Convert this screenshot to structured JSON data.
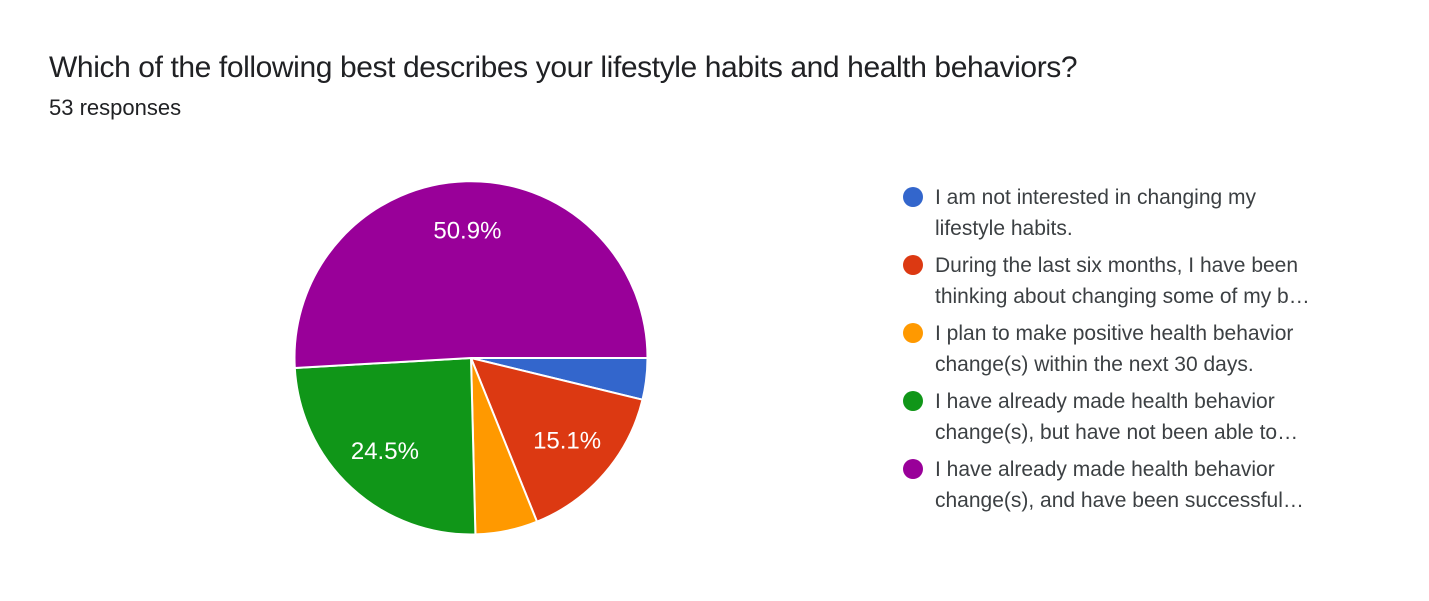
{
  "header": {
    "title": "Which of the following best describes your lifestyle habits and health behaviors?",
    "responses": "53 responses"
  },
  "chart_data": {
    "type": "pie",
    "title": "Which of the following best describes your lifestyle habits and health behaviors?",
    "subtitle": "53 responses",
    "responses_total": 53,
    "start_angle": "3-o-clock",
    "direction": "clockwise",
    "legend_position": "right",
    "slice_border_color": "#ffffff",
    "slice_label_color": "#ffffff",
    "slices": [
      {
        "name": "I am not interested in changing my lifestyle habits.",
        "percent": 3.8,
        "label": "",
        "color": "#3366CC",
        "legend_lines": [
          "I am not interested in changing my",
          "lifestyle habits."
        ]
      },
      {
        "name": "During the last six months, I have been thinking about changing some of my b…",
        "percent": 15.1,
        "label": "15.1%",
        "color": "#DC3912",
        "legend_lines": [
          "During the last six months, I have been",
          "thinking about changing some of my b…"
        ]
      },
      {
        "name": "I plan to make positive health behavior change(s) within the next 30 days.",
        "percent": 5.7,
        "label": "",
        "color": "#FF9900",
        "legend_lines": [
          "I plan to make positive health behavior",
          "change(s) within the next 30 days."
        ]
      },
      {
        "name": "I have already made health behavior change(s), but have not been able to…",
        "percent": 24.5,
        "label": "24.5%",
        "color": "#109618",
        "legend_lines": [
          "I have already made health behavior",
          "change(s), but have not been able to…"
        ]
      },
      {
        "name": "I have already made health behavior change(s), and have been successful…",
        "percent": 50.9,
        "label": "50.9%",
        "color": "#990099",
        "legend_lines": [
          "I have already made health behavior",
          "change(s), and have been successful…"
        ]
      }
    ]
  },
  "colors": {
    "background": "#ffffff",
    "title_text": "#202124",
    "legend_text": "#3c4043"
  }
}
